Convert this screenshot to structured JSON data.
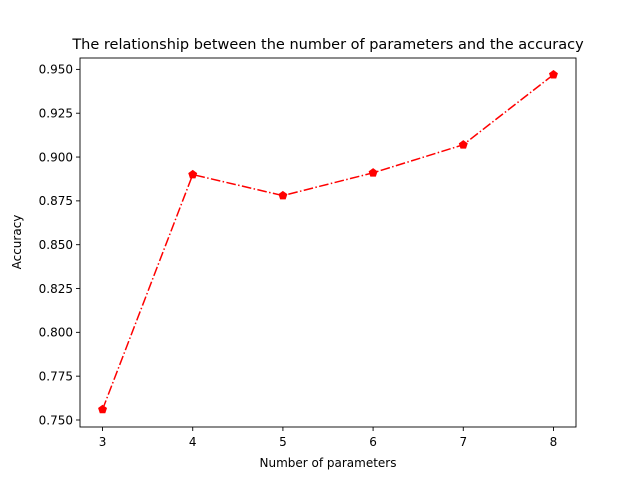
{
  "chart_data": {
    "type": "line",
    "title": "The relationship between the number of parameters and the accuracy",
    "xlabel": "Number of parameters",
    "ylabel": "Accuracy",
    "x": [
      3,
      4,
      5,
      6,
      7,
      8
    ],
    "x_ticks": [
      "3",
      "4",
      "5",
      "6",
      "7",
      "8"
    ],
    "y_ticks": [
      "0.750",
      "0.775",
      "0.800",
      "0.825",
      "0.850",
      "0.875",
      "0.900",
      "0.925",
      "0.950"
    ],
    "xlim": [
      2.75,
      8.25
    ],
    "ylim": [
      0.746,
      0.9565
    ],
    "grid": false,
    "series": [
      {
        "values": [
          0.756,
          0.89,
          0.878,
          0.891,
          0.907,
          0.947
        ],
        "color": "#ff0000",
        "line_style": "dash-dot",
        "marker": "pentagon"
      }
    ]
  }
}
